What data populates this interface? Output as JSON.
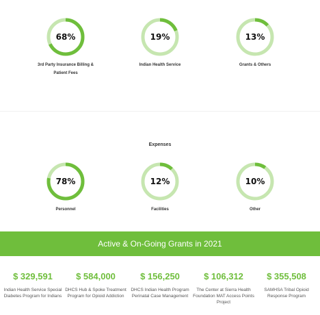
{
  "colors": {
    "accent": "#6fbe3c",
    "track": "#c6e6b0",
    "banner": "#6fbe3c",
    "text_dark": "#222222"
  },
  "revenue": [
    {
      "value": 68,
      "label_text": "68%",
      "label": "3rd Party Insurance Billing & Patient Fees"
    },
    {
      "value": 19,
      "label_text": "19%",
      "label": "Indian Health Service"
    },
    {
      "value": 13,
      "label_text": "13%",
      "label": "Grants & Others"
    }
  ],
  "expenses": {
    "title": "Expenses",
    "items": [
      {
        "value": 78,
        "label_text": "78%",
        "label": "Personnel"
      },
      {
        "value": 12,
        "label_text": "12%",
        "label": "Facilities"
      },
      {
        "value": 10,
        "label_text": "10%",
        "label": "Other"
      }
    ]
  },
  "grants": {
    "title": "Active & On-Going Grants in 2021",
    "items": [
      {
        "amount": "$ 329,591",
        "desc": "Indian Health Service Special Diabetes Program for Indians"
      },
      {
        "amount": "$ 584,000",
        "desc": "DHCS Hub & Spoke Treatment Program for Opioid Addiction"
      },
      {
        "amount": "$ 156,250",
        "desc": "DHCS Indian Health Program Perinatal Case Management"
      },
      {
        "amount": "$ 106,312",
        "desc": "The Center at Sierra Health Foundation MAT Access Points Project"
      },
      {
        "amount": "$ 355,508",
        "desc": "SAMHSA Tribal Opioid Response Program"
      }
    ]
  }
}
